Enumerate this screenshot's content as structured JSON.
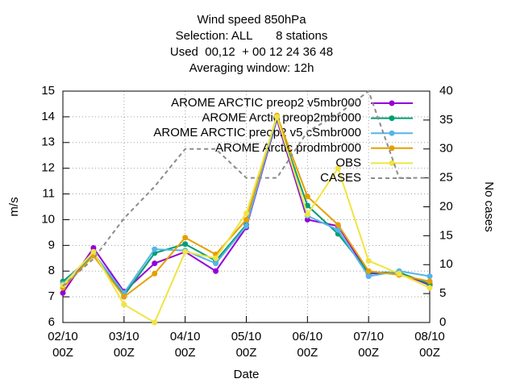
{
  "chart_data": {
    "type": "line",
    "title": "Wind speed 850hPa\nSelection: ALL       8 stations\nUsed  00,12  + 00 12 24 36 48\nAveraging window: 12h",
    "xlabel": "Date",
    "ylabel": "m/s",
    "y2label": "No cases",
    "categories": [
      "02/10\n00Z",
      null,
      "03/10\n00Z",
      null,
      "04/10\n00Z",
      null,
      "05/10\n00Z",
      null,
      "06/10\n00Z",
      null,
      "07/10\n00Z",
      null,
      "08/10\n00Z"
    ],
    "ylim": [
      6,
      15
    ],
    "yticks": [
      6,
      7,
      8,
      9,
      10,
      11,
      12,
      13,
      14,
      15
    ],
    "y2lim": [
      0,
      40
    ],
    "y2ticks": [
      0,
      5,
      10,
      15,
      20,
      25,
      30,
      35,
      40
    ],
    "grid": true,
    "legend": "top-right",
    "series": [
      {
        "name": "AROME ARCTIC preop2 v5mbr000",
        "color": "#9400d3",
        "values": [
          7.15,
          8.9,
          7.2,
          8.3,
          8.75,
          8.0,
          9.7,
          13.9,
          10.0,
          9.75,
          7.9,
          7.95,
          7.45
        ]
      },
      {
        "name": "AROME Arctic preop2mbr000",
        "color": "#009e73",
        "values": [
          7.6,
          8.6,
          7.05,
          8.7,
          9.05,
          8.4,
          9.8,
          13.95,
          10.55,
          9.45,
          7.95,
          7.95,
          7.5
        ]
      },
      {
        "name": "AROME ARCTIC preop2 v5 cSmbr000",
        "color": "#56b4e9",
        "values": [
          7.5,
          8.7,
          7.15,
          8.85,
          8.8,
          8.3,
          9.75,
          14.0,
          10.15,
          9.6,
          7.8,
          8.0,
          7.8
        ]
      },
      {
        "name": "AROME Arctic prodmbr000",
        "color": "#e69f00",
        "values": [
          7.35,
          8.6,
          7.0,
          7.9,
          9.3,
          8.65,
          10.0,
          14.05,
          10.9,
          9.8,
          8.0,
          7.85,
          7.6
        ]
      },
      {
        "name": "OBS",
        "color": "#f0e442",
        "values": [
          7.45,
          8.75,
          6.7,
          6.0,
          8.75,
          8.5,
          10.25,
          14.0,
          10.2,
          12.0,
          8.4,
          7.9,
          7.35
        ]
      },
      {
        "name": "CASES",
        "color": "#8c8c8c",
        "axis": "y2",
        "dashed": true,
        "values": [
          6.3,
          11,
          18,
          23.5,
          30,
          30,
          25,
          25,
          33,
          36,
          40,
          25,
          25
        ]
      }
    ]
  }
}
